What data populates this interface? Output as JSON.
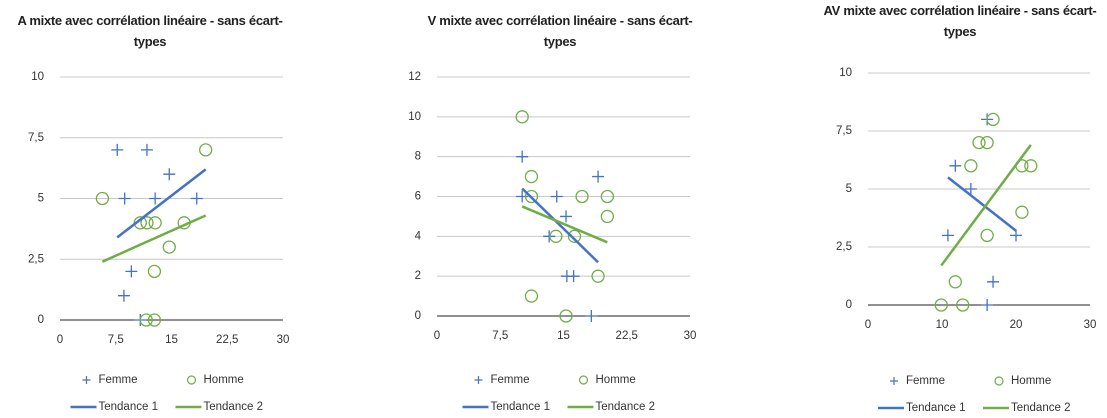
{
  "chart_data": [
    {
      "type": "scatter",
      "title": "A mixte avec corrélation linéaire - sans écart-types",
      "xlim": [
        0,
        30
      ],
      "xticks": [
        0,
        {
          "value": 7.5,
          "label": "7,5"
        },
        15,
        {
          "value": 22.5,
          "label": "22,5"
        },
        30
      ],
      "ylim": [
        0,
        10
      ],
      "yticks": [
        0,
        {
          "value": 2.5,
          "label": "2,5"
        },
        5,
        {
          "value": 7.5,
          "label": "7,5"
        },
        10
      ],
      "grid": true,
      "series": [
        {
          "name": "Femme",
          "color": "#4472c4",
          "marker": "plus",
          "x": [
            7.7,
            11.7,
            8.7,
            12.8,
            14.7,
            18.4,
            9.6,
            8.6,
            10.8
          ],
          "values": [
            7,
            7,
            5,
            5,
            6,
            5,
            2,
            1,
            0
          ]
        },
        {
          "name": "Homme",
          "color": "#70ad47",
          "marker": "circle",
          "x": [
            19.6,
            5.7,
            10.8,
            11.7,
            12.8,
            16.7,
            14.7,
            12.7,
            11.6,
            12.7
          ],
          "values": [
            7,
            5,
            4,
            4,
            4,
            4,
            3,
            2,
            0,
            0
          ]
        },
        {
          "name": "Tendance 1",
          "color": "#4472c4",
          "marker": "line",
          "x": [
            7.7,
            19.6
          ],
          "values": [
            3.4,
            6.2
          ]
        },
        {
          "name": "Tendance 2",
          "color": "#70ad47",
          "marker": "line",
          "x": [
            5.7,
            19.6
          ],
          "values": [
            2.4,
            4.3
          ]
        }
      ]
    },
    {
      "type": "scatter",
      "title": "V mixte avec corrélation linéaire - sans écart-types",
      "xlim": [
        0,
        30
      ],
      "xticks": [
        0,
        {
          "value": 7.5,
          "label": "7,5"
        },
        15,
        {
          "value": 22.5,
          "label": "22,5"
        },
        30
      ],
      "ylim": [
        0,
        12
      ],
      "yticks": [
        0,
        2,
        4,
        6,
        8,
        10,
        12
      ],
      "grid": true,
      "series": [
        {
          "name": "Femme",
          "color": "#4472c4",
          "marker": "plus",
          "x": [
            10.1,
            10.1,
            14.2,
            15.3,
            13.3,
            15.4,
            16.2,
            18.3,
            19.1
          ],
          "values": [
            8,
            6,
            6,
            5,
            4,
            2,
            2,
            0,
            7
          ]
        },
        {
          "name": "Homme",
          "color": "#70ad47",
          "marker": "circle",
          "x": [
            10.1,
            11.2,
            11.2,
            17.2,
            20.2,
            20.2,
            14.1,
            16.3,
            19.1,
            11.2,
            15.3
          ],
          "values": [
            10,
            7,
            6,
            6,
            6,
            5,
            4,
            4,
            2,
            1,
            0
          ]
        },
        {
          "name": "Tendance 1",
          "color": "#4472c4",
          "marker": "line",
          "x": [
            10.1,
            19.1
          ],
          "values": [
            6.4,
            2.7
          ]
        },
        {
          "name": "Tendance 2",
          "color": "#70ad47",
          "marker": "line",
          "x": [
            10.1,
            20.2
          ],
          "values": [
            5.5,
            3.7
          ]
        }
      ]
    },
    {
      "type": "scatter",
      "title": "AV mixte avec corrélation linéaire - sans écart-types",
      "xlim": [
        0,
        30
      ],
      "xticks": [
        0,
        10,
        20,
        30
      ],
      "ylim": [
        0,
        10
      ],
      "yticks": [
        0,
        {
          "value": 2.5,
          "label": "2,5"
        },
        5,
        {
          "value": 7.5,
          "label": "7,5"
        },
        10
      ],
      "grid": true,
      "series": [
        {
          "name": "Femme",
          "color": "#4472c4",
          "marker": "plus",
          "x": [
            11.8,
            13.9,
            10.8,
            20,
            16.9,
            16.1,
            16.1
          ],
          "values": [
            6,
            5,
            3,
            3,
            1,
            0,
            8
          ]
        },
        {
          "name": "Homme",
          "color": "#70ad47",
          "marker": "circle",
          "x": [
            16.9,
            15,
            16.1,
            13.9,
            20.8,
            22,
            20.8,
            16.1,
            11.8,
            9.9,
            12.8
          ],
          "values": [
            8,
            7,
            7,
            6,
            6,
            6,
            4,
            3,
            1,
            0,
            0
          ]
        },
        {
          "name": "Tendance 1",
          "color": "#4472c4",
          "marker": "line",
          "x": [
            10.8,
            20
          ],
          "values": [
            5.5,
            3.2
          ]
        },
        {
          "name": "Tendance 2",
          "color": "#70ad47",
          "marker": "line",
          "x": [
            9.9,
            22
          ],
          "values": [
            1.7,
            6.9
          ]
        }
      ]
    }
  ]
}
